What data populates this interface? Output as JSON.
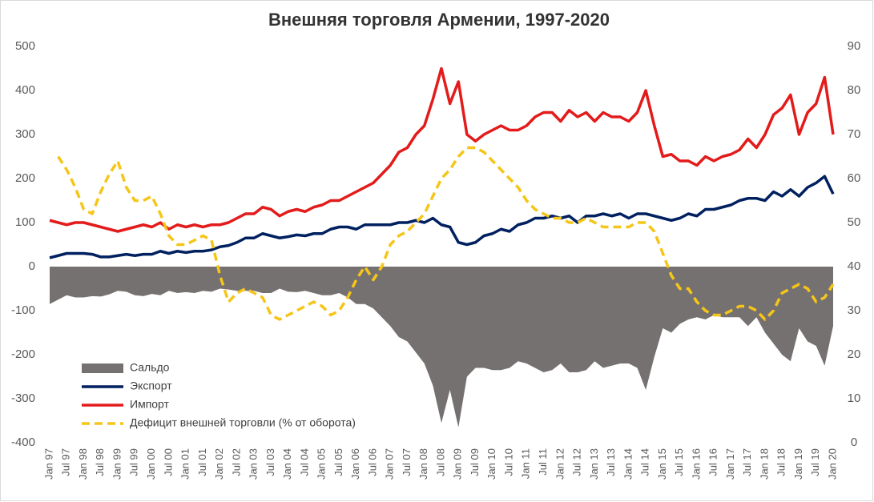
{
  "chart_data": {
    "type": "line",
    "title": "Внешняя торговля Армении, 1997-2020",
    "categories": [
      "Jan 97",
      null,
      "Jul 97",
      null,
      "Jan 98",
      null,
      "Jul 98",
      null,
      "Jan 99",
      null,
      "Jul 99",
      null,
      "Jan 00",
      null,
      "Jul 00",
      null,
      "Jan 01",
      null,
      "Jul 01",
      null,
      "Jan 02",
      null,
      "Jul 02",
      null,
      "Jan 03",
      null,
      "Jul 03",
      null,
      "Jan 04",
      null,
      "Jul 04",
      null,
      "Jan 05",
      null,
      "Jul 05",
      null,
      "Jan 06",
      null,
      "Jul 06",
      null,
      "Jan 07",
      null,
      "Jul 07",
      null,
      "Jan 08",
      null,
      "Jul 08",
      null,
      "Jan 09",
      null,
      "Jul 09",
      null,
      "Jan 10",
      null,
      "Jul 10",
      null,
      "Jan 11",
      null,
      "Jul 11",
      null,
      "Jan 12",
      null,
      "Jul 12",
      null,
      "Jan 13",
      null,
      "Jul 13",
      null,
      "Jan 14",
      null,
      "Jul 14",
      null,
      "Jan 15",
      null,
      "Jul 15",
      null,
      "Jan 16",
      null,
      "Jul 16",
      null,
      "Jan 17",
      null,
      "Jul 17",
      null,
      "Jan 18",
      null,
      "Jul 18",
      null,
      "Jan 19",
      null,
      "Jul 19",
      null,
      "Jan 20"
    ],
    "series": [
      {
        "name": "Сальдо",
        "style": "area",
        "color": "#767171",
        "values": [
          -85,
          -75,
          -65,
          -70,
          -70,
          -67,
          -68,
          -63,
          -55,
          -57,
          -65,
          -67,
          -62,
          -65,
          -55,
          -60,
          -58,
          -60,
          -55,
          -57,
          -50,
          -52,
          -55,
          -55,
          -55,
          -60,
          -60,
          -50,
          -57,
          -58,
          -55,
          -60,
          -65,
          -65,
          -60,
          -70,
          -85,
          -85,
          -95,
          -115,
          -135,
          -160,
          -170,
          -195,
          -220,
          -270,
          -355,
          -280,
          -365,
          -250,
          -230,
          -230,
          -235,
          -235,
          -230,
          -215,
          -220,
          -230,
          -240,
          -235,
          -220,
          -240,
          -240,
          -235,
          -215,
          -230,
          -225,
          -220,
          -220,
          -230,
          -280,
          -205,
          -140,
          -150,
          -130,
          -120,
          -115,
          -120,
          -110,
          -115,
          -115,
          -115,
          -135,
          -115,
          -150,
          -175,
          -200,
          -215,
          -140,
          -170,
          -180,
          -225,
          -135
        ]
      },
      {
        "name": "Экспорт",
        "style": "solid",
        "color": "#002060",
        "values": [
          20,
          25,
          30,
          30,
          30,
          28,
          22,
          22,
          25,
          28,
          25,
          28,
          28,
          35,
          30,
          35,
          32,
          35,
          35,
          38,
          45,
          48,
          55,
          65,
          65,
          75,
          70,
          65,
          68,
          72,
          70,
          75,
          75,
          85,
          90,
          90,
          85,
          95,
          95,
          95,
          95,
          100,
          100,
          105,
          100,
          110,
          95,
          90,
          55,
          50,
          55,
          70,
          75,
          85,
          80,
          95,
          100,
          110,
          110,
          115,
          110,
          115,
          100,
          115,
          115,
          120,
          115,
          120,
          110,
          120,
          120,
          115,
          110,
          105,
          110,
          120,
          115,
          130,
          130,
          135,
          140,
          150,
          155,
          155,
          150,
          170,
          160,
          175,
          160,
          180,
          190,
          205,
          165
        ]
      },
      {
        "name": "Импорт",
        "style": "solid",
        "color": "#e31b1b",
        "values": [
          105,
          100,
          95,
          100,
          100,
          95,
          90,
          85,
          80,
          85,
          90,
          95,
          90,
          100,
          85,
          95,
          90,
          95,
          90,
          95,
          95,
          100,
          110,
          120,
          120,
          135,
          130,
          115,
          125,
          130,
          125,
          135,
          140,
          150,
          150,
          160,
          170,
          180,
          190,
          210,
          230,
          260,
          270,
          300,
          320,
          380,
          450,
          370,
          420,
          300,
          285,
          300,
          310,
          320,
          310,
          310,
          320,
          340,
          350,
          350,
          330,
          355,
          340,
          350,
          330,
          350,
          340,
          340,
          330,
          350,
          400,
          320,
          250,
          255,
          240,
          240,
          230,
          250,
          240,
          250,
          255,
          265,
          290,
          270,
          300,
          345,
          360,
          390,
          300,
          350,
          370,
          430,
          300
        ]
      },
      {
        "name": "Дефицит внешней торговли (% от оборота)",
        "style": "dashed",
        "axis": "y2",
        "color": "#f5c518",
        "values": [
          null,
          65,
          62,
          58,
          53,
          52,
          57,
          61,
          64,
          58,
          55,
          55,
          56,
          52,
          47,
          45,
          45,
          46,
          47,
          46,
          38,
          32,
          34,
          35,
          34,
          33,
          29,
          28,
          29,
          30,
          31,
          32,
          31,
          29,
          30,
          33,
          37,
          40,
          37,
          40,
          45,
          47,
          48,
          50,
          52,
          56,
          60,
          62,
          65,
          67,
          67,
          66,
          64,
          62,
          60,
          58,
          55,
          53,
          52,
          51,
          51,
          50,
          50,
          51,
          50,
          49,
          49,
          49,
          49,
          50,
          50,
          48,
          43,
          38,
          35,
          35,
          32,
          30,
          29,
          29,
          30,
          31,
          31,
          30,
          28,
          30,
          34,
          35,
          36,
          35,
          32,
          33,
          36
        ]
      }
    ],
    "ylim": [
      -400,
      560
    ],
    "yticks": [
      -400,
      -300,
      -200,
      -100,
      0,
      100,
      200,
      300,
      400,
      500
    ],
    "y2lim": [
      0,
      96
    ],
    "y2ticks": [
      0,
      10,
      20,
      30,
      40,
      50,
      60,
      70,
      80,
      90
    ],
    "legend": "lower-left"
  }
}
